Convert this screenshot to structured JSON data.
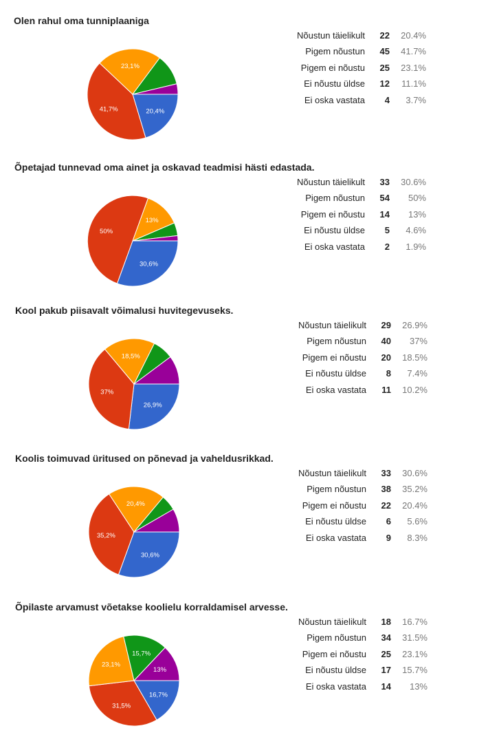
{
  "colors": [
    "#3366cc",
    "#dc3912",
    "#ff9900",
    "#109618",
    "#990099"
  ],
  "chart_data": [
    {
      "type": "pie",
      "title": "Olen rahul oma tunniplaaniga",
      "categories": [
        "Nõustun täielikult",
        "Pigem nõustun",
        "Pigem ei nõustu",
        "Ei nõustu üldse",
        "Ei oska vastata"
      ],
      "values": [
        22,
        45,
        25,
        12,
        4
      ],
      "percents": [
        "20.4%",
        "41.7%",
        "23.1%",
        "11.1%",
        "3.7%"
      ],
      "slice_labels": [
        "20,4%",
        "41,7%",
        "23,1%",
        "",
        ""
      ]
    },
    {
      "type": "pie",
      "title": "Õpetajad tunnevad oma ainet ja oskavad teadmisi hästi edastada.",
      "categories": [
        "Nõustun täielikult",
        "Pigem nõustun",
        "Pigem ei nõustu",
        "Ei nõustu üldse",
        "Ei oska vastata"
      ],
      "values": [
        33,
        54,
        14,
        5,
        2
      ],
      "percents": [
        "30.6%",
        "50%",
        "13%",
        "4.6%",
        "1.9%"
      ],
      "slice_labels": [
        "30,6%",
        "50%",
        "13%",
        "",
        ""
      ]
    },
    {
      "type": "pie",
      "title": "Kool pakub piisavalt võimalusi huvitegevuseks.",
      "categories": [
        "Nõustun täielikult",
        "Pigem nõustun",
        "Pigem ei nõustu",
        "Ei nõustu üldse",
        "Ei oska vastata"
      ],
      "values": [
        29,
        40,
        20,
        8,
        11
      ],
      "percents": [
        "26.9%",
        "37%",
        "18.5%",
        "7.4%",
        "10.2%"
      ],
      "slice_labels": [
        "26,9%",
        "37%",
        "18,5%",
        "",
        ""
      ]
    },
    {
      "type": "pie",
      "title": "Koolis toimuvad üritused on põnevad ja vaheldusrikkad.",
      "categories": [
        "Nõustun täielikult",
        "Pigem nõustun",
        "Pigem ei nõustu",
        "Ei nõustu üldse",
        "Ei oska vastata"
      ],
      "values": [
        33,
        38,
        22,
        6,
        9
      ],
      "percents": [
        "30.6%",
        "35.2%",
        "20.4%",
        "5.6%",
        "8.3%"
      ],
      "slice_labels": [
        "30,6%",
        "35,2%",
        "20,4%",
        "",
        ""
      ]
    },
    {
      "type": "pie",
      "title": "Õpilaste arvamust võetakse koolielu korraldamisel arvesse.",
      "categories": [
        "Nõustun täielikult",
        "Pigem nõustun",
        "Pigem ei nõustu",
        "Ei nõustu üldse",
        "Ei oska vastata"
      ],
      "values": [
        18,
        34,
        25,
        17,
        14
      ],
      "percents": [
        "16.7%",
        "31.5%",
        "23.1%",
        "15.7%",
        "13%"
      ],
      "slice_labels": [
        "16,7%",
        "31,5%",
        "23,1%",
        "15,7%",
        "13%"
      ]
    }
  ]
}
